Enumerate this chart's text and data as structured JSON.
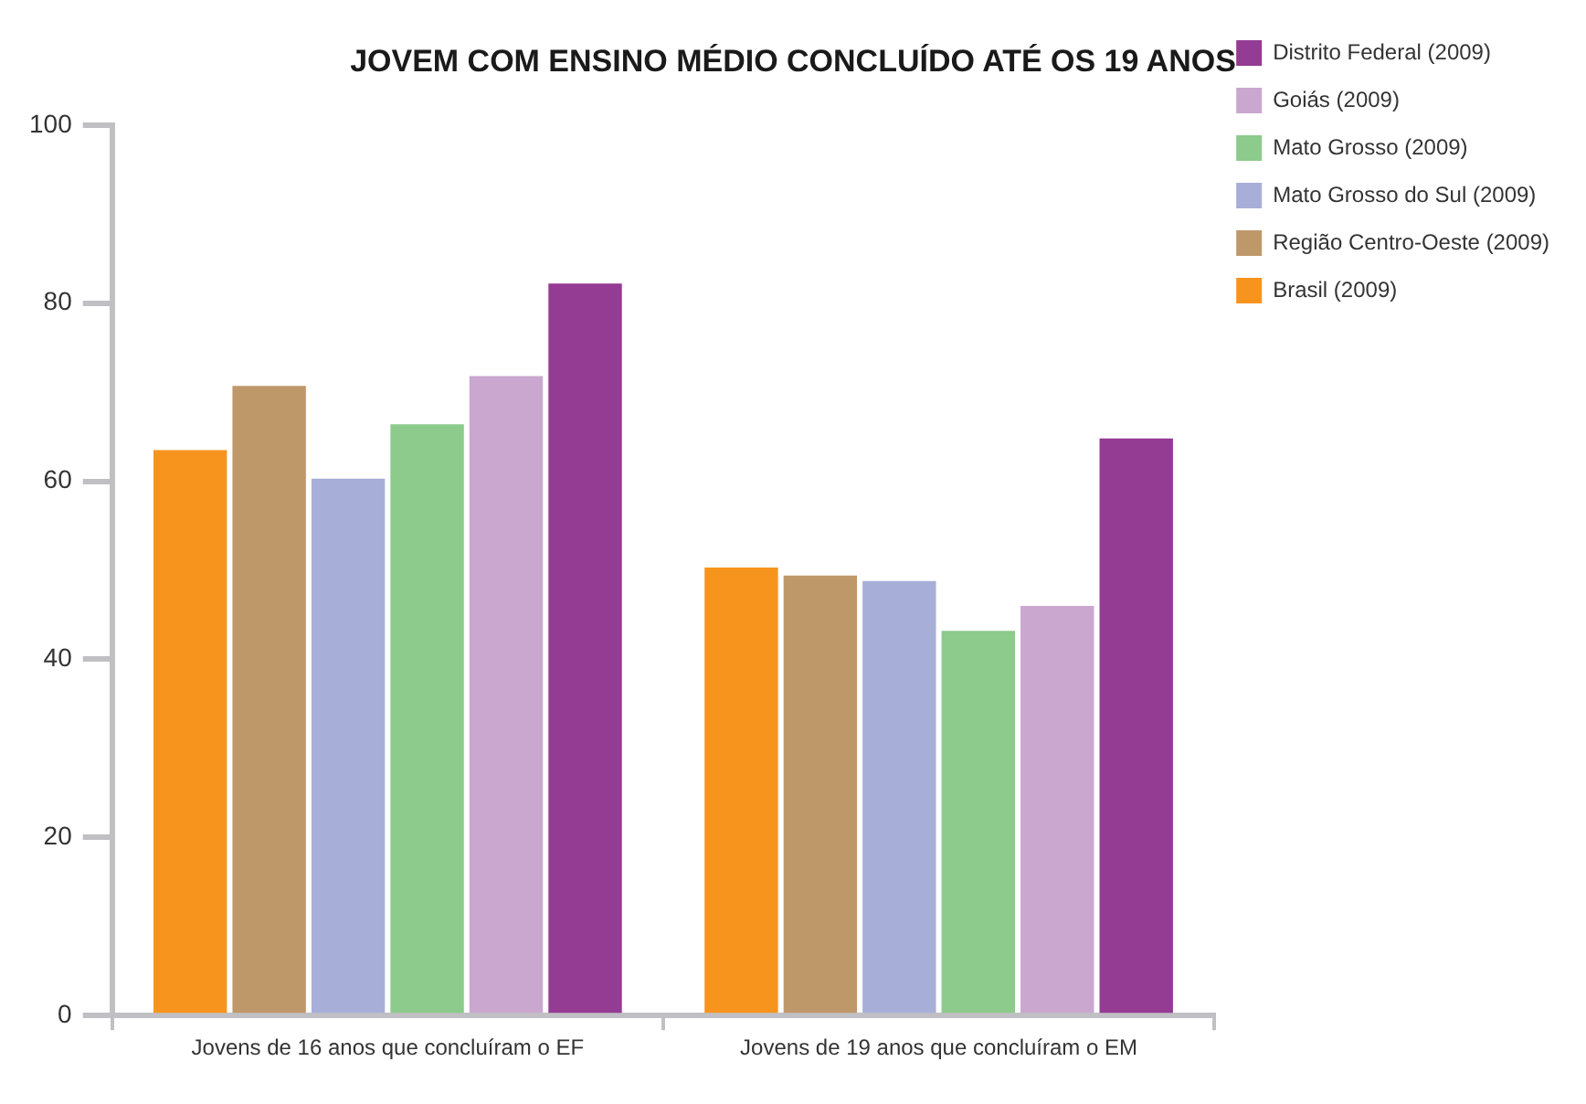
{
  "chart_data": {
    "type": "bar",
    "title": "JOVEM COM ENSINO MÉDIO CONCLUÍDO ATÉ OS 19 ANOS",
    "categories": [
      "Jovens de 16 anos que concluíram o EF",
      "Jovens de 19 anos que concluíram o EM"
    ],
    "series": [
      {
        "name": "Brasil (2009)",
        "color": "#f7941e",
        "values": [
          63.5,
          50.3
        ]
      },
      {
        "name": "Região Centro-Oeste (2009)",
        "color": "#bf986a",
        "values": [
          70.7,
          49.4
        ]
      },
      {
        "name": "Mato Grosso do Sul (2009)",
        "color": "#a7afd8",
        "values": [
          60.3,
          48.8
        ]
      },
      {
        "name": "Mato Grosso (2009)",
        "color": "#8ccb8b",
        "values": [
          66.4,
          43.2
        ]
      },
      {
        "name": "Goiás (2009)",
        "color": "#caa7cf",
        "values": [
          71.8,
          46.0
        ]
      },
      {
        "name": "Distrito Federal (2009)",
        "color": "#943b93",
        "values": [
          82.2,
          64.8
        ]
      }
    ],
    "ylim": [
      0,
      100
    ],
    "yticks": [
      0,
      20,
      40,
      60,
      80,
      100
    ],
    "grid": false,
    "legend": "top right"
  }
}
